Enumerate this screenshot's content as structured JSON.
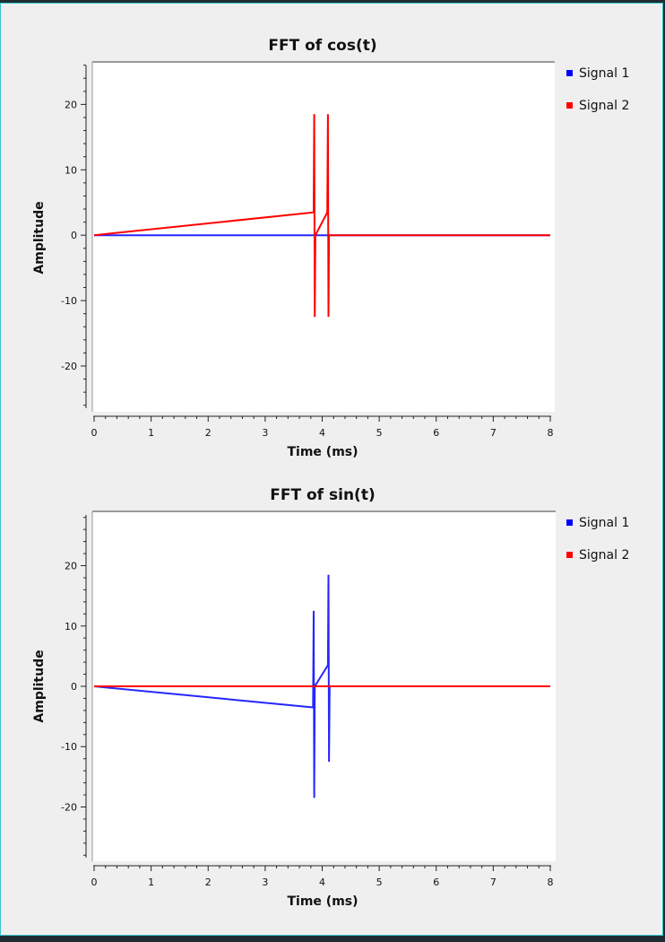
{
  "window": {
    "background": "#efefef",
    "border": "#35c3c8"
  },
  "chart_data": [
    {
      "type": "line",
      "title": "FFT of cos(t)",
      "xlabel": "Time (ms)",
      "ylabel": "Amplitude",
      "xlim": [
        0,
        8
      ],
      "ylim": [
        -27,
        26.5
      ],
      "xticks": [
        0,
        1,
        2,
        3,
        4,
        5,
        6,
        7,
        8
      ],
      "yticks": [
        -20,
        -10,
        0,
        10,
        20
      ],
      "legend": "top-right",
      "series": [
        {
          "name": "Signal 1",
          "color": "#0000ff",
          "x": [
            0,
            3.86,
            3.86,
            3.87,
            3.87,
            4.11,
            4.11,
            4.12,
            4.12,
            8
          ],
          "y": [
            0,
            0,
            0,
            0,
            0,
            0,
            0,
            0,
            0,
            0
          ]
        },
        {
          "name": "Signal 2",
          "color": "#ff0000",
          "x": [
            0,
            3.85,
            3.86,
            3.87,
            3.88,
            4.09,
            4.1,
            4.11,
            4.12,
            8
          ],
          "y": [
            0,
            3.5,
            18.5,
            -12.5,
            0,
            3.5,
            18.5,
            -12.5,
            0,
            0
          ]
        }
      ]
    },
    {
      "type": "line",
      "title": "FFT of sin(t)",
      "xlabel": "Time (ms)",
      "ylabel": "Amplitude",
      "xlim": [
        0,
        8
      ],
      "ylim": [
        -29,
        29
      ],
      "xticks": [
        0,
        1,
        2,
        3,
        4,
        5,
        6,
        7,
        8
      ],
      "yticks": [
        -20,
        -10,
        0,
        10,
        20
      ],
      "legend": "top-right",
      "series": [
        {
          "name": "Signal 1",
          "color": "#0000ff",
          "x": [
            0,
            3.84,
            3.85,
            3.86,
            3.87,
            4.1,
            4.11,
            4.12,
            4.13,
            8
          ],
          "y": [
            0,
            -3.5,
            12.5,
            -18.5,
            0,
            3.5,
            18.5,
            -12.5,
            0,
            0
          ]
        },
        {
          "name": "Signal 2",
          "color": "#ff0000",
          "x": [
            0,
            3.86,
            3.86,
            3.87,
            3.87,
            4.11,
            4.11,
            4.12,
            4.12,
            8
          ],
          "y": [
            0,
            0,
            0,
            0,
            0,
            0,
            0,
            0,
            0,
            0
          ]
        }
      ]
    }
  ]
}
